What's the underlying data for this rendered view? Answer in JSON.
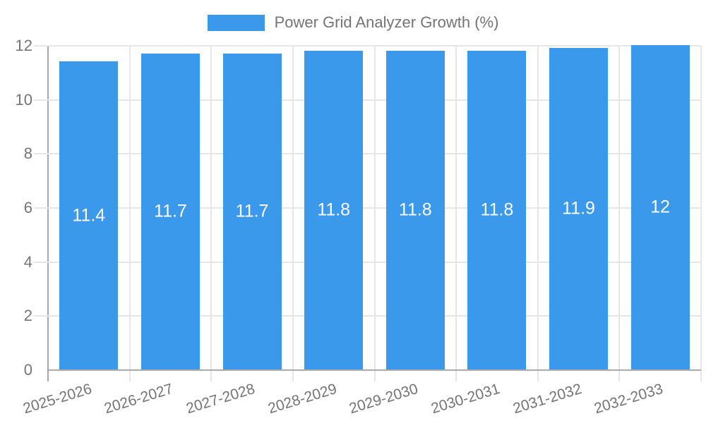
{
  "legend": {
    "label": "Power Grid Analyzer Growth (%)"
  },
  "chart_data": {
    "type": "bar",
    "title": "Power Grid Analyzer Growth (%)",
    "series_name": "Power Grid Analyzer Growth (%)",
    "categories": [
      "2025-2026",
      "2026-2027",
      "2027-2028",
      "2028-2029",
      "2029-2030",
      "2030-2031",
      "2031-2032",
      "2032-2033"
    ],
    "values": [
      11.4,
      11.7,
      11.7,
      11.8,
      11.8,
      11.8,
      11.9,
      12
    ],
    "value_labels": [
      "11.4",
      "11.7",
      "11.7",
      "11.8",
      "11.8",
      "11.8",
      "11.9",
      "12"
    ],
    "xlabel": "",
    "ylabel": "",
    "ylim": [
      0,
      12
    ],
    "yticks": [
      0,
      2,
      4,
      6,
      8,
      10,
      12
    ],
    "grid": true,
    "legend_position": "top-center",
    "bar_color": "#3b99ec",
    "axis_label_color": "#757575",
    "value_label_color": "#ffffff",
    "gridline_color": "#e6e6e6",
    "axis_line_color": "#aaaaaa"
  }
}
